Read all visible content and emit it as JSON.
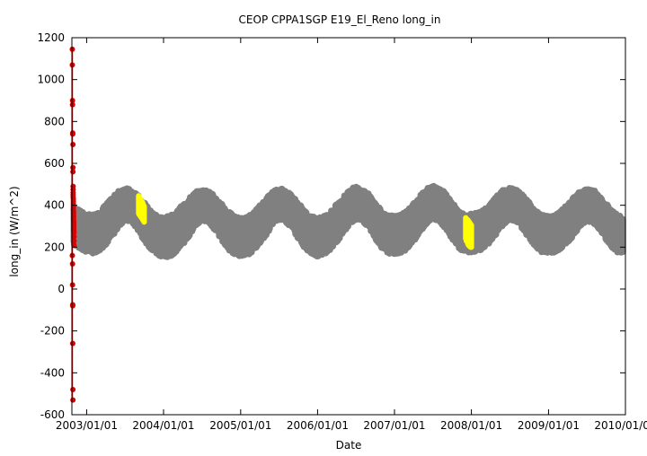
{
  "chart_data": {
    "type": "scatter",
    "title": "CEOP CPPA1SGP E19_El_Reno  long_in",
    "xlabel": "Date",
    "ylabel": "long_in (W/m^2)",
    "xlim": [
      "2002-10-23",
      "2010-01-01"
    ],
    "ylim": [
      -600,
      1200
    ],
    "x_ticks": [
      "2003/01/01",
      "2004/01/01",
      "2005/01/01",
      "2006/01/01",
      "2007/01/01",
      "2008/01/01",
      "2009/01/01",
      "2010/01/01"
    ],
    "y_ticks": [
      -600,
      -400,
      -200,
      0,
      200,
      400,
      600,
      800,
      1000,
      1200
    ],
    "grid": false,
    "legend": "none",
    "series": [
      {
        "color": "#808080",
        "style": "dense band of points following an annual cycle",
        "x": [
          "2002-11-01",
          "2002-12-01",
          "2003-01-01",
          "2003-02-01",
          "2003-03-01",
          "2003-04-01",
          "2003-05-01",
          "2003-06-01",
          "2003-07-01",
          "2003-08-01",
          "2003-09-01",
          "2003-10-01",
          "2003-11-01",
          "2003-12-01",
          "2004-01-01",
          "2004-02-01",
          "2004-03-01",
          "2004-04-01",
          "2004-05-01",
          "2004-06-01",
          "2004-07-01",
          "2004-08-01",
          "2004-09-01",
          "2004-10-01",
          "2004-11-01",
          "2004-12-01",
          "2005-01-01",
          "2005-02-01",
          "2005-03-01",
          "2005-04-01",
          "2005-05-01",
          "2005-06-01",
          "2005-07-01",
          "2005-08-01",
          "2005-09-01",
          "2005-10-01",
          "2005-11-01",
          "2005-12-01",
          "2006-01-01",
          "2006-02-01",
          "2006-03-01",
          "2006-04-01",
          "2006-05-01",
          "2006-06-01",
          "2006-07-01",
          "2006-08-01",
          "2006-09-01",
          "2006-10-01",
          "2006-11-01",
          "2006-12-01",
          "2007-01-01",
          "2007-02-01",
          "2007-03-01",
          "2007-04-01",
          "2007-05-01",
          "2007-06-01",
          "2007-07-01",
          "2007-08-01",
          "2007-09-01",
          "2007-10-01",
          "2007-11-01",
          "2007-12-01",
          "2008-01-01",
          "2008-02-01",
          "2008-03-01",
          "2008-04-01",
          "2008-05-01",
          "2008-06-01",
          "2008-07-01",
          "2008-08-01",
          "2008-09-01",
          "2008-10-01",
          "2008-11-01",
          "2008-12-01",
          "2009-01-01",
          "2009-02-01",
          "2009-03-01",
          "2009-04-01",
          "2009-05-01",
          "2009-06-01",
          "2009-07-01",
          "2009-08-01",
          "2009-09-01",
          "2009-10-01",
          "2009-11-01",
          "2009-12-01"
        ],
        "y_min": [
          225,
          205,
          190,
          185,
          195,
          225,
          260,
          310,
          340,
          335,
          295,
          245,
          205,
          180,
          165,
          170,
          190,
          225,
          265,
          315,
          340,
          330,
          295,
          250,
          205,
          180,
          170,
          175,
          195,
          230,
          270,
          320,
          345,
          335,
          300,
          255,
          210,
          185,
          170,
          180,
          200,
          235,
          275,
          320,
          345,
          340,
          305,
          255,
          210,
          185,
          180,
          185,
          205,
          240,
          280,
          325,
          350,
          340,
          300,
          255,
          210,
          185,
          190,
          195,
          210,
          240,
          280,
          320,
          345,
          335,
          300,
          255,
          210,
          190,
          185,
          190,
          205,
          235,
          270,
          315,
          340,
          330,
          295,
          250,
          205,
          185
        ],
        "y_max": [
          380,
          360,
          345,
          340,
          355,
          390,
          420,
          455,
          470,
          460,
          435,
          400,
          360,
          340,
          330,
          335,
          355,
          390,
          420,
          450,
          460,
          455,
          430,
          395,
          360,
          335,
          325,
          330,
          350,
          385,
          420,
          455,
          470,
          460,
          435,
          400,
          360,
          335,
          325,
          335,
          355,
          390,
          425,
          460,
          475,
          470,
          440,
          400,
          360,
          340,
          335,
          340,
          360,
          395,
          430,
          465,
          480,
          475,
          445,
          405,
          360,
          340,
          345,
          350,
          365,
          395,
          430,
          460,
          470,
          460,
          435,
          400,
          360,
          340,
          335,
          340,
          360,
          390,
          425,
          455,
          465,
          460,
          435,
          400,
          360,
          335
        ]
      },
      {
        "color": "#ffff00",
        "style": "points",
        "x": [
          "2003-09-05",
          "2003-09-08",
          "2003-09-12",
          "2003-09-15",
          "2003-09-19",
          "2003-09-22",
          "2003-09-25",
          "2003-09-28",
          "2003-10-01"
        ],
        "y_min": [
          360,
          355,
          350,
          345,
          340,
          335,
          330,
          325,
          320
        ],
        "y_max": [
          445,
          440,
          430,
          425,
          420,
          415,
          410,
          400,
          395
        ]
      },
      {
        "color": "#ffff00",
        "style": "points",
        "x": [
          "2007-12-05",
          "2007-12-08",
          "2007-12-12",
          "2007-12-15",
          "2007-12-18",
          "2007-12-22",
          "2007-12-25",
          "2007-12-28",
          "2008-01-01"
        ],
        "y_min": [
          240,
          230,
          225,
          215,
          210,
          205,
          205,
          200,
          200
        ],
        "y_max": [
          340,
          335,
          330,
          330,
          325,
          320,
          315,
          310,
          305
        ]
      },
      {
        "color": "#dd0000",
        "style": "points joined by a vertical line",
        "x": [
          "2002-10-25",
          "2002-10-25",
          "2002-10-26",
          "2002-10-26",
          "2002-10-27",
          "2002-10-27",
          "2002-10-28",
          "2002-10-28",
          "2002-10-28",
          "2002-10-29",
          "2002-10-29",
          "2002-10-29",
          "2002-10-29",
          "2002-10-29",
          "2002-10-30",
          "2002-10-30",
          "2002-10-30",
          "2002-10-30",
          "2002-10-30",
          "2002-10-30",
          "2002-10-31",
          "2002-10-31",
          "2002-10-31",
          "2002-10-31",
          "2002-10-31",
          "2002-11-01",
          "2002-11-01",
          "2002-11-01",
          "2002-11-01",
          "2002-11-01",
          "2002-11-02",
          "2002-11-02",
          "2002-11-02",
          "2002-11-02"
        ],
        "y": [
          1145,
          1070,
          900,
          880,
          745,
          740,
          690,
          580,
          560,
          490,
          475,
          460,
          450,
          440,
          430,
          420,
          410,
          400,
          390,
          380,
          370,
          360,
          350,
          340,
          330,
          320,
          310,
          300,
          290,
          280,
          270,
          250,
          230,
          210
        ],
        "outliers_x": [
          "2002-10-25",
          "2002-10-26",
          "2002-10-26",
          "2002-10-27",
          "2002-10-27",
          "2002-10-27",
          "2002-10-28",
          "2002-10-28"
        ],
        "outliers_y": [
          160,
          120,
          20,
          -75,
          -80,
          -260,
          -480,
          -530
        ]
      }
    ]
  }
}
